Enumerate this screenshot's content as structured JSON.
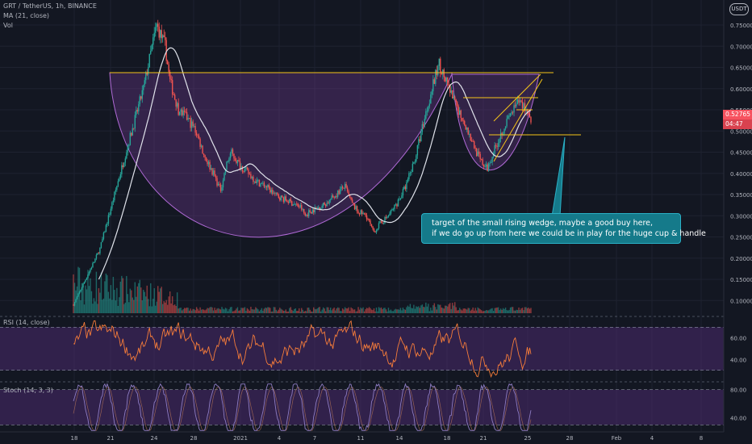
{
  "header": {
    "title": "GRT / TetherUS, 1h, BINANCE",
    "ma_label": "MA (21, close)",
    "vol_label": "Vol"
  },
  "currency_badge": "USDT",
  "price_badge": {
    "price": "0.52765",
    "countdown": "04:47"
  },
  "annotation": {
    "line1": "target of the small rising wedge, maybe a good buy here,",
    "line2": "if we do go up from here we could be in play for the huge cup & handle"
  },
  "panes": {
    "rsi_label": "RSI (14, close)",
    "stoch_label": "Stoch (14, 3, 3)"
  },
  "colors": {
    "background": "#131722",
    "up": "#26a69a",
    "down": "#ef5350",
    "ma": "#e0e3eb",
    "pattern_line": "#f5c518",
    "cup_fill": "#7b3fa0",
    "rsi": "#f57c3a",
    "stoch": "#8e7cc3",
    "callout": "#157a8a"
  },
  "chart_data": [
    {
      "type": "candlestick",
      "title": "GRT / TetherUS, 1h, BINANCE",
      "y_axis_ticks": [
        "0.75000",
        "0.70000",
        "0.65000",
        "0.60000",
        "0.55000",
        "0.50000",
        "0.45000",
        "0.40000",
        "0.35000",
        "0.30000",
        "0.25000",
        "0.20000",
        "0.15000",
        "0.10000"
      ],
      "ylim": [
        0.07,
        0.79
      ],
      "x_axis_ticks": [
        "18",
        "21",
        "24",
        "28",
        "2021",
        "4",
        "7",
        "11",
        "14",
        "18",
        "21",
        "25",
        "28",
        "Feb",
        "4",
        "8"
      ],
      "price_path": [
        [
          0,
          0.09
        ],
        [
          3,
          0.22
        ],
        [
          6,
          0.45
        ],
        [
          8,
          0.6
        ],
        [
          9.5,
          0.75
        ],
        [
          10.5,
          0.7
        ],
        [
          11,
          0.62
        ],
        [
          12,
          0.55
        ],
        [
          13,
          0.53
        ],
        [
          14,
          0.5
        ],
        [
          15,
          0.44
        ],
        [
          16,
          0.4
        ],
        [
          16.8,
          0.36
        ],
        [
          17.5,
          0.42
        ],
        [
          18,
          0.45
        ],
        [
          19,
          0.42
        ],
        [
          20,
          0.4
        ],
        [
          21,
          0.38
        ],
        [
          22,
          0.37
        ],
        [
          23,
          0.35
        ],
        [
          24,
          0.34
        ],
        [
          25,
          0.33
        ],
        [
          26,
          0.32
        ],
        [
          26.5,
          0.3
        ],
        [
          27,
          0.31
        ],
        [
          28,
          0.32
        ],
        [
          29,
          0.33
        ],
        [
          30,
          0.35
        ],
        [
          31,
          0.37
        ],
        [
          31.8,
          0.33
        ],
        [
          32.5,
          0.31
        ],
        [
          33.5,
          0.3
        ],
        [
          34.3,
          0.26
        ],
        [
          35,
          0.28
        ],
        [
          36,
          0.3
        ],
        [
          37,
          0.33
        ],
        [
          38,
          0.37
        ],
        [
          39,
          0.43
        ],
        [
          40,
          0.52
        ],
        [
          41,
          0.6
        ],
        [
          41.8,
          0.66
        ],
        [
          42.5,
          0.62
        ],
        [
          43.5,
          0.57
        ],
        [
          44.5,
          0.53
        ],
        [
          45.5,
          0.48
        ],
        [
          46.5,
          0.43
        ],
        [
          47.3,
          0.41
        ],
        [
          48,
          0.45
        ],
        [
          49,
          0.5
        ],
        [
          50,
          0.54
        ],
        [
          51,
          0.57
        ],
        [
          51.8,
          0.55
        ],
        [
          52.3,
          0.53
        ]
      ],
      "ma_length": 21,
      "volume_spike_region": [
        0,
        12
      ]
    },
    {
      "type": "line",
      "title": "RSI (14, close)",
      "y_axis_ticks": [
        "60.00",
        "40.00"
      ],
      "ylim": [
        20,
        80
      ]
    },
    {
      "type": "line",
      "title": "Stoch (14, 3, 3)",
      "y_axis_ticks": [
        "80.00",
        "40.00"
      ],
      "ylim": [
        20,
        80
      ]
    }
  ]
}
